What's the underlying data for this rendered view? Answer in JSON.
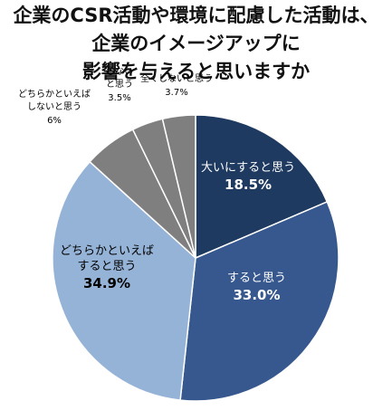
{
  "title_lines": [
    "企業のCSR活動や環境に配慮した活動は、",
    "企業のイメージアップに",
    "影響を与えると思いますか"
  ],
  "chart_data": {
    "type": "pie",
    "title": "企業のCSR活動や環境に配慮した活動は、企業のイメージアップに影響を与えると思いますか",
    "start_angle_deg": 0,
    "direction": "clockwise",
    "slices": [
      {
        "label": [
          "大いにすると思う"
        ],
        "value": 18.5,
        "value_text": "18.5%",
        "color": "#1f3a60",
        "text_color": "#ffffff",
        "outside": false
      },
      {
        "label": [
          "すると思う"
        ],
        "value": 33.0,
        "value_text": "33.0%",
        "color": "#36588f",
        "text_color": "#ffffff",
        "outside": false
      },
      {
        "label": [
          "どちらかといえば",
          "すると思う"
        ],
        "value": 34.9,
        "value_text": "34.9%",
        "color": "#95b3d7",
        "text_color": "#000000",
        "outside": false
      },
      {
        "label": [
          "どちらかといえば",
          "しないと思う"
        ],
        "value": 6.0,
        "value_text": "6%",
        "color": "#7f7f7f",
        "text_color": "#000000",
        "outside": true
      },
      {
        "label": [
          "しない",
          "と思う"
        ],
        "value": 3.5,
        "value_text": "3.5%",
        "color": "#7f7f7f",
        "text_color": "#000000",
        "outside": true
      },
      {
        "label": [
          "全くしないと思う"
        ],
        "value": 3.7,
        "value_text": "3.7%",
        "color": "#7f7f7f",
        "text_color": "#000000",
        "outside": true
      }
    ]
  }
}
